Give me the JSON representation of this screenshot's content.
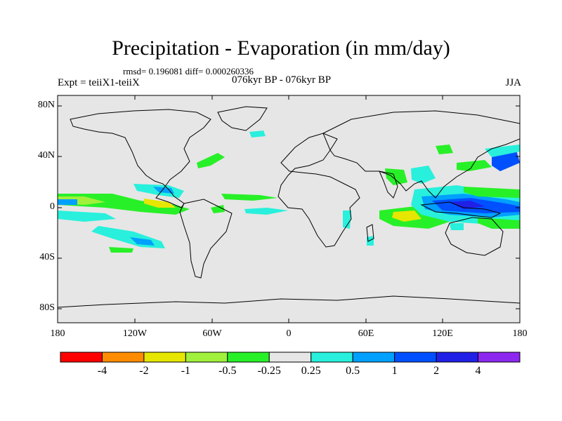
{
  "title": "Precipitation - Evaporation (in mm/day)",
  "stats": "rmsd= 0.196081 diff= 0.000260336",
  "left_label": "Expt = teiiX1-teiiX",
  "center_label": "076kyr BP - 076kyr BP",
  "right_label": "JJA",
  "lat_ticks": [
    "80N",
    "40N",
    "0",
    "40S",
    "80S"
  ],
  "lon_ticks": [
    "180",
    "120W",
    "60W",
    "0",
    "60E",
    "120E",
    "180"
  ],
  "colorbar": {
    "labels": [
      "-4",
      "-2",
      "-1",
      "-0.5",
      "-0.25",
      "0.25",
      "0.5",
      "1",
      "2",
      "4"
    ],
    "colors": [
      "#ff0000",
      "#ff8c00",
      "#e6e600",
      "#a0f03c",
      "#28f028",
      "#e6e6e6",
      "#28f0dc",
      "#00a0ff",
      "#0050ff",
      "#2020e6",
      "#8c28f0"
    ]
  },
  "map_colors": {
    "background": "#e6e6e6",
    "coast": "#000000"
  }
}
